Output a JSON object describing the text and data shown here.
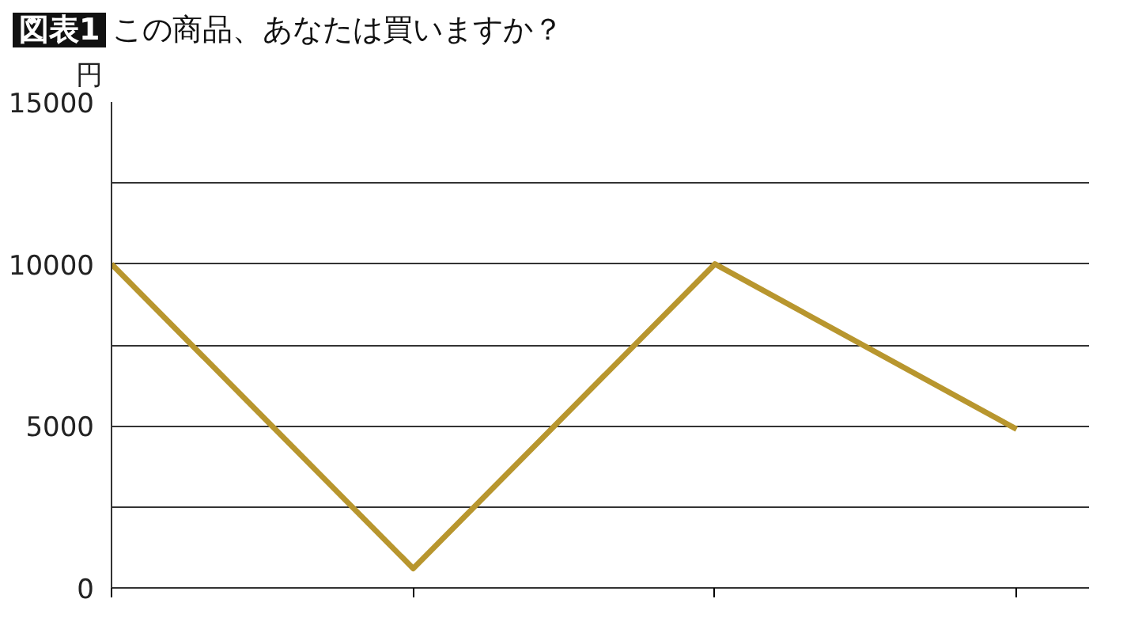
{
  "chart_data": {
    "type": "line",
    "title": "この商品、あなたは買いますか？",
    "annotations": [
      "図表1"
    ],
    "ylabel": "円",
    "categories": [
      null,
      null,
      null,
      null
    ],
    "series": [
      {
        "color": "#b8962e",
        "values": [
          10000,
          600,
          10000,
          4900
        ]
      }
    ],
    "ylim": [
      0,
      15000
    ],
    "yticks": [
      0,
      {
        "value": 2500,
        "label": null
      },
      5000,
      {
        "value": 7500,
        "label": null
      },
      10000,
      {
        "value": 12500,
        "label": null
      },
      15000
    ],
    "grid": "y",
    "marker": "none",
    "line_style": "solid"
  }
}
